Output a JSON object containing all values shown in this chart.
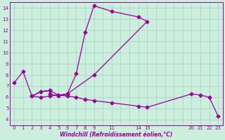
{
  "xlabel": "Windchill (Refroidissement éolien,°C)",
  "bg_color": "#cceedd",
  "line_color": "#990099",
  "marker": "D",
  "markersize": 2.5,
  "linewidth": 0.9,
  "xlim": [
    -0.5,
    23.5
  ],
  "ylim": [
    3.5,
    14.5
  ],
  "xticks": [
    0,
    1,
    2,
    3,
    4,
    5,
    6,
    7,
    8,
    9,
    11,
    14,
    15,
    20,
    21,
    22,
    23
  ],
  "yticks": [
    4,
    5,
    6,
    7,
    8,
    9,
    10,
    11,
    12,
    13,
    14
  ],
  "grid_color": "#aacccc",
  "data_points": [
    [
      0,
      7.3
    ],
    [
      1,
      8.3
    ],
    [
      2,
      6.1
    ],
    [
      3,
      6.5
    ],
    [
      4,
      6.6
    ],
    [
      4,
      6.3
    ],
    [
      5,
      6.1
    ],
    [
      6,
      6.3
    ],
    [
      7,
      8.1
    ],
    [
      8,
      11.8
    ],
    [
      9,
      14.2
    ],
    [
      11,
      13.7
    ],
    [
      14,
      13.2
    ],
    [
      15,
      12.8
    ],
    [
      9,
      8.0
    ],
    [
      6,
      6.3
    ],
    [
      5,
      6.2
    ],
    [
      4,
      6.1
    ],
    [
      3,
      6.0
    ],
    [
      2,
      6.1
    ],
    [
      3,
      6.5
    ],
    [
      4,
      6.6
    ],
    [
      5,
      6.2
    ],
    [
      6,
      6.1
    ],
    [
      7,
      6.0
    ],
    [
      8,
      5.8
    ],
    [
      9,
      5.7
    ],
    [
      11,
      5.5
    ],
    [
      14,
      5.2
    ],
    [
      15,
      5.1
    ],
    [
      20,
      6.3
    ],
    [
      21,
      6.2
    ],
    [
      22,
      6.0
    ],
    [
      23,
      4.3
    ]
  ]
}
